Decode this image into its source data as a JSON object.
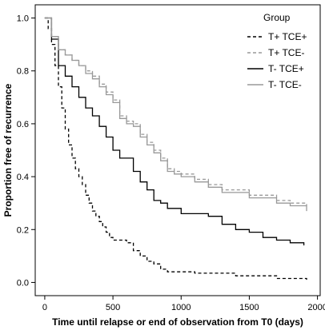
{
  "chart_data": {
    "type": "line",
    "title": "",
    "xlabel": "Time until relapse or end of observation from T0 (days)",
    "ylabel": "Proportion free of recurrence",
    "xlim": [
      -70,
      2020
    ],
    "ylim": [
      -0.05,
      1.05
    ],
    "x_ticks": [
      0,
      500,
      1000,
      1500,
      2000
    ],
    "x_tick_labels": [
      "0",
      "500",
      "1000",
      "1500",
      "2000"
    ],
    "y_ticks": [
      0.0,
      0.2,
      0.4,
      0.6,
      0.8,
      1.0
    ],
    "y_tick_labels": [
      "0.0",
      "0.2",
      "0.4",
      "0.6",
      "0.8",
      "1.0"
    ],
    "grid": false,
    "legend": {
      "title": "Group",
      "position": "top-right"
    },
    "series": [
      {
        "name": "T+ TCE+",
        "color": "#000000",
        "dash": "dashed",
        "step": true,
        "points": [
          [
            0,
            1.0
          ],
          [
            25,
            0.96
          ],
          [
            50,
            0.9
          ],
          [
            75,
            0.82
          ],
          [
            100,
            0.74
          ],
          [
            125,
            0.66
          ],
          [
            150,
            0.58
          ],
          [
            175,
            0.52
          ],
          [
            200,
            0.47
          ],
          [
            225,
            0.43
          ],
          [
            250,
            0.4
          ],
          [
            275,
            0.37
          ],
          [
            300,
            0.33
          ],
          [
            325,
            0.3
          ],
          [
            350,
            0.27
          ],
          [
            375,
            0.25
          ],
          [
            400,
            0.23
          ],
          [
            425,
            0.21
          ],
          [
            450,
            0.19
          ],
          [
            475,
            0.17
          ],
          [
            500,
            0.16
          ],
          [
            600,
            0.15
          ],
          [
            650,
            0.12
          ],
          [
            700,
            0.1
          ],
          [
            750,
            0.08
          ],
          [
            800,
            0.07
          ],
          [
            850,
            0.05
          ],
          [
            900,
            0.04
          ],
          [
            1100,
            0.035
          ],
          [
            1400,
            0.025
          ],
          [
            1700,
            0.015
          ],
          [
            1920,
            0.01
          ]
        ]
      },
      {
        "name": "T+ TCE-",
        "color": "#999999",
        "dash": "dashed",
        "step": true,
        "points": [
          [
            0,
            1.0
          ],
          [
            50,
            0.93
          ],
          [
            100,
            0.88
          ],
          [
            150,
            0.86
          ],
          [
            200,
            0.84
          ],
          [
            250,
            0.82
          ],
          [
            300,
            0.8
          ],
          [
            350,
            0.78
          ],
          [
            400,
            0.75
          ],
          [
            450,
            0.72
          ],
          [
            500,
            0.69
          ],
          [
            550,
            0.63
          ],
          [
            600,
            0.61
          ],
          [
            650,
            0.6
          ],
          [
            700,
            0.56
          ],
          [
            750,
            0.53
          ],
          [
            800,
            0.5
          ],
          [
            850,
            0.47
          ],
          [
            900,
            0.43
          ],
          [
            950,
            0.42
          ],
          [
            1000,
            0.41
          ],
          [
            1100,
            0.39
          ],
          [
            1200,
            0.37
          ],
          [
            1300,
            0.35
          ],
          [
            1500,
            0.33
          ],
          [
            1700,
            0.31
          ],
          [
            1800,
            0.3
          ],
          [
            1920,
            0.29
          ]
        ]
      },
      {
        "name": "T- TCE+",
        "color": "#000000",
        "dash": "solid",
        "step": true,
        "points": [
          [
            0,
            1.0
          ],
          [
            50,
            0.92
          ],
          [
            100,
            0.82
          ],
          [
            150,
            0.78
          ],
          [
            200,
            0.74
          ],
          [
            250,
            0.7
          ],
          [
            300,
            0.66
          ],
          [
            350,
            0.63
          ],
          [
            400,
            0.59
          ],
          [
            450,
            0.55
          ],
          [
            500,
            0.5
          ],
          [
            550,
            0.47
          ],
          [
            600,
            0.47
          ],
          [
            650,
            0.42
          ],
          [
            700,
            0.38
          ],
          [
            750,
            0.35
          ],
          [
            800,
            0.31
          ],
          [
            850,
            0.3
          ],
          [
            900,
            0.28
          ],
          [
            1000,
            0.26
          ],
          [
            1200,
            0.25
          ],
          [
            1300,
            0.22
          ],
          [
            1400,
            0.2
          ],
          [
            1500,
            0.19
          ],
          [
            1600,
            0.17
          ],
          [
            1700,
            0.16
          ],
          [
            1800,
            0.15
          ],
          [
            1900,
            0.14
          ]
        ]
      },
      {
        "name": "T- TCE-",
        "color": "#999999",
        "dash": "solid",
        "step": true,
        "points": [
          [
            0,
            1.0
          ],
          [
            50,
            0.93
          ],
          [
            100,
            0.88
          ],
          [
            150,
            0.86
          ],
          [
            200,
            0.84
          ],
          [
            250,
            0.82
          ],
          [
            300,
            0.79
          ],
          [
            350,
            0.77
          ],
          [
            400,
            0.74
          ],
          [
            450,
            0.71
          ],
          [
            500,
            0.68
          ],
          [
            550,
            0.62
          ],
          [
            600,
            0.6
          ],
          [
            650,
            0.59
          ],
          [
            700,
            0.55
          ],
          [
            750,
            0.52
          ],
          [
            800,
            0.49
          ],
          [
            850,
            0.46
          ],
          [
            900,
            0.42
          ],
          [
            950,
            0.41
          ],
          [
            1000,
            0.4
          ],
          [
            1100,
            0.38
          ],
          [
            1200,
            0.36
          ],
          [
            1300,
            0.34
          ],
          [
            1500,
            0.32
          ],
          [
            1700,
            0.3
          ],
          [
            1800,
            0.29
          ],
          [
            1920,
            0.27
          ]
        ]
      }
    ]
  }
}
